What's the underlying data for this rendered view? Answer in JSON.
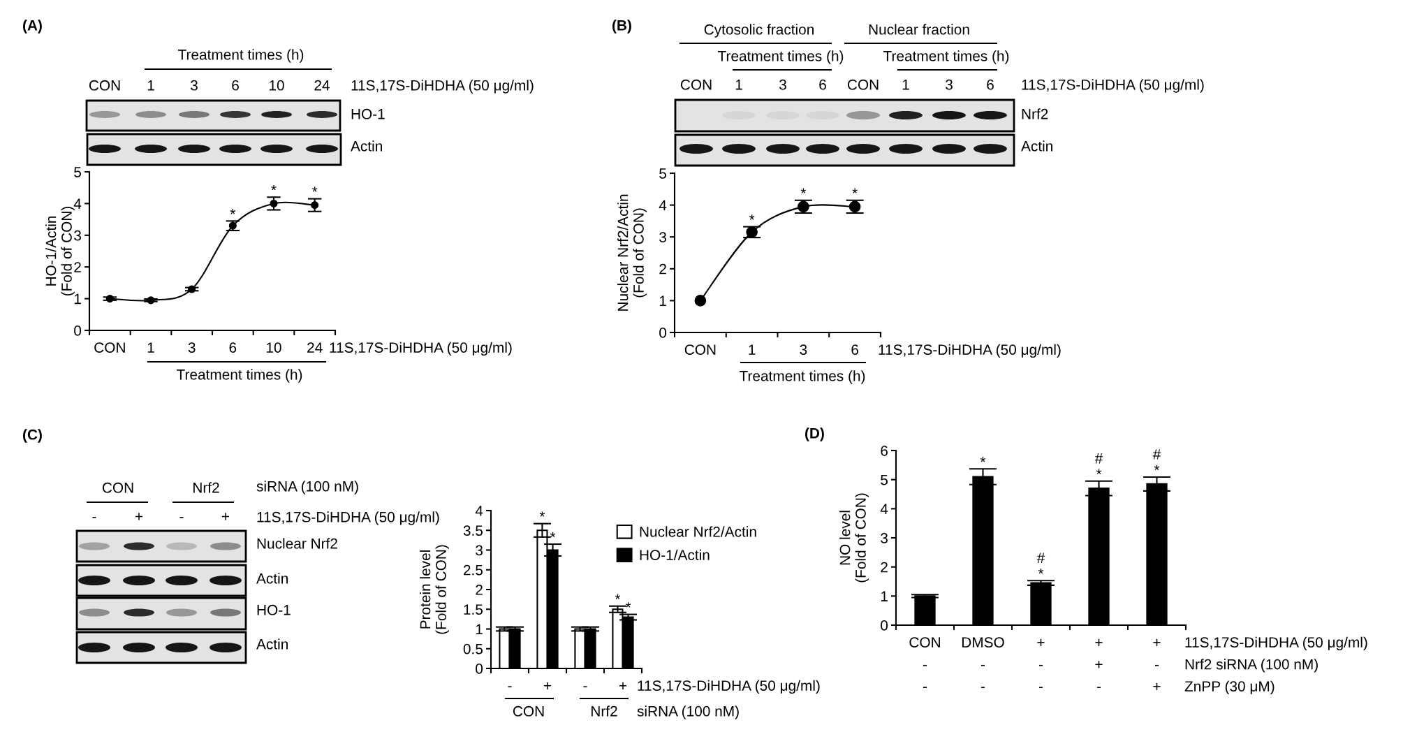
{
  "chart_data": [
    {
      "type": "line",
      "title": "(A)",
      "xlabel": "11S,17S-DiHDHA (50 μg/ml)",
      "ylabel": "HO-1/Actin\n(Fold of CON)",
      "categories": [
        "CON",
        "1",
        "3",
        "6",
        "10",
        "24"
      ],
      "values": [
        1.0,
        0.95,
        1.3,
        3.3,
        4.0,
        3.95
      ],
      "errors": [
        0.05,
        0.04,
        0.05,
        0.15,
        0.2,
        0.2
      ],
      "value_labels": [
        null,
        null,
        null,
        "*",
        "*",
        "*"
      ],
      "color": "#000000",
      "marker": "circle",
      "line_style": "solid",
      "ylim": [
        0,
        5
      ],
      "yticks": [
        0,
        1,
        2,
        3,
        4,
        5
      ],
      "annotations": [
        "Treatment times (h)",
        "Treatment times (h)",
        "CON",
        "1",
        "3",
        "6",
        "10",
        "24",
        "11S,17S-DiHDHA (50 μg/ml)",
        "HO-1",
        "Actin"
      ]
    },
    {
      "type": "line",
      "title": "(B)",
      "xlabel": "11S,17S-DiHDHA (50 μg/ml)",
      "ylabel": "Nuclear Nrf2/Actin\n(Fold of CON)",
      "categories": [
        "CON",
        "1",
        "3",
        "6"
      ],
      "values": [
        1.0,
        3.15,
        3.95,
        3.95
      ],
      "errors": [
        null,
        0.17,
        0.2,
        0.2
      ],
      "value_labels": [
        null,
        "*",
        "*",
        "*"
      ],
      "color": "#000000",
      "marker": "circle",
      "line_style": "solid",
      "ylim": [
        0,
        5
      ],
      "yticks": [
        0,
        1,
        2,
        3,
        4,
        5
      ],
      "annotations": [
        "Treatment times (h)",
        "Cytosolic fraction",
        "Nuclear fraction",
        "Treatment times (h)",
        "Treatment times (h)",
        "CON",
        "1",
        "3",
        "6",
        "CON",
        "1",
        "3",
        "6",
        "11S,17S-DiHDHA (50 μg/ml)",
        "Nrf2",
        "Actin"
      ]
    },
    {
      "type": "other",
      "title": "(C)",
      "annotations": [
        "CON",
        "Nrf2",
        "siRNA (100 nM)",
        "-",
        "+",
        "-",
        "+",
        "11S,17S-DiHDHA (50 μg/ml)",
        "Nuclear Nrf2",
        "Actin",
        "HO-1",
        "Actin"
      ]
    },
    {
      "type": "bar",
      "xlabel": "11S,17S-DiHDHA (50 μg/ml)",
      "ylabel": "Protein level\n(Fold of CON)",
      "categories": [
        "-",
        "+",
        "-",
        "+"
      ],
      "series": [
        {
          "name": "Nuclear Nrf2/Actin",
          "color": "#ffffff",
          "values": [
            1.0,
            3.5,
            1.0,
            1.5
          ],
          "errors": [
            0.05,
            0.17,
            0.05,
            0.08
          ],
          "value_labels": [
            null,
            "*",
            null,
            "*"
          ]
        },
        {
          "name": "HO-1/Actin",
          "color": "#000000",
          "values": [
            1.0,
            3.0,
            1.0,
            1.3
          ],
          "errors": [
            0.05,
            0.15,
            0.05,
            0.07
          ],
          "value_labels": [
            null,
            "*",
            null,
            "*"
          ]
        }
      ],
      "ylim": [
        0,
        4
      ],
      "yticks": [
        0,
        0.5,
        1,
        1.5,
        2,
        2.5,
        3,
        3.5,
        4
      ],
      "legend": "top right",
      "annotations": [
        "CON",
        "Nrf2",
        "siRNA (100 nM)"
      ]
    },
    {
      "type": "bar",
      "title": "(D)",
      "xlabel": "11S,17S-DiHDHA (50 μg/ml)\nNrf2 siRNA (100 nM)\nZnPP (30 μM)",
      "ylabel": "NO level\n(Fold of CON)",
      "categories": [
        "CON\n-\n-",
        "DMSO\n-\n-",
        "+\n-\n-",
        "+\n+\n-",
        "+\n-\n+"
      ],
      "values": [
        1.0,
        5.1,
        1.45,
        4.7,
        4.85
      ],
      "errors": [
        0.05,
        0.27,
        0.08,
        0.25,
        0.24
      ],
      "value_labels": [
        null,
        "*",
        "#\n*",
        "#\n*",
        "#\n*"
      ],
      "color": "#000000",
      "ylim": [
        0,
        6
      ],
      "yticks": [
        0,
        1,
        2,
        3,
        4,
        5,
        6
      ]
    }
  ]
}
